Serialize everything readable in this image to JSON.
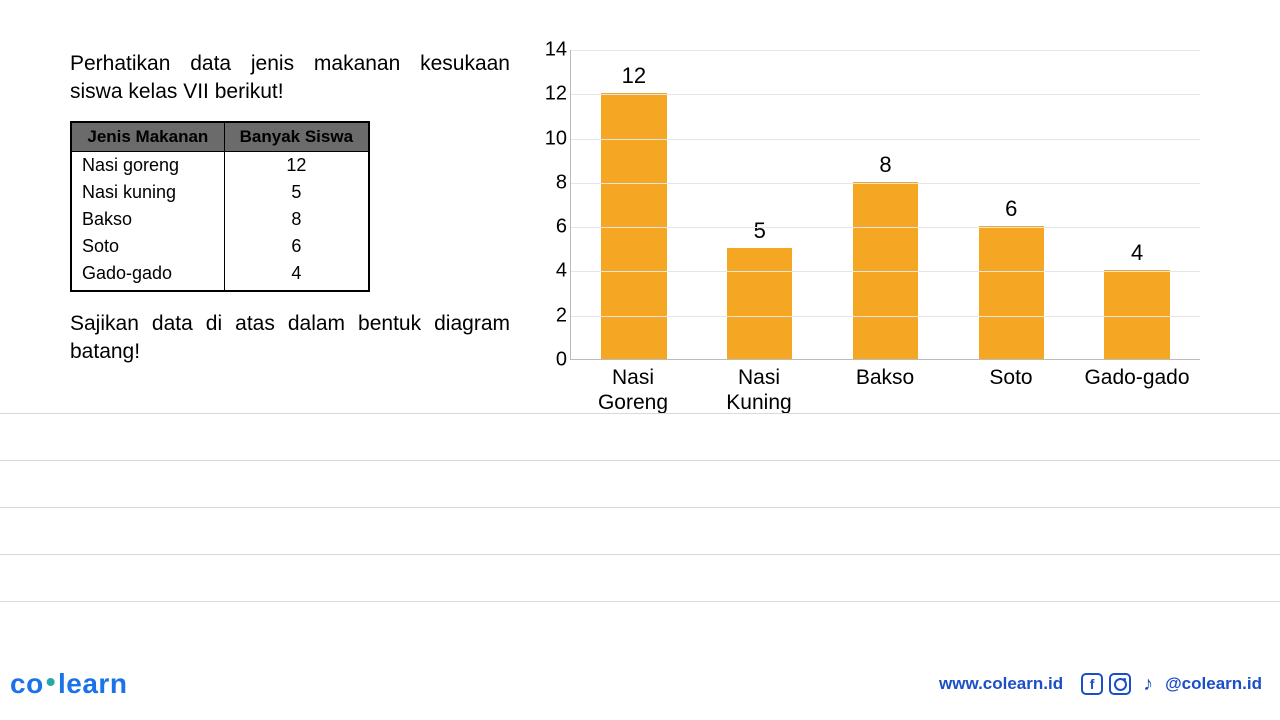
{
  "prompt": {
    "line1": "Perhatikan data jenis makanan kesukaan siswa kelas VII berikut!",
    "instruction": "Sajikan data di atas dalam bentuk diagram batang!"
  },
  "table": {
    "headers": [
      "Jenis Makanan",
      "Banyak Siswa"
    ],
    "rows": [
      [
        "Nasi goreng",
        "12"
      ],
      [
        "Nasi kuning",
        "5"
      ],
      [
        "Bakso",
        "8"
      ],
      [
        "Soto",
        "6"
      ],
      [
        "Gado-gado",
        "4"
      ]
    ],
    "header_bg": "#6b6b6b",
    "border_color": "#000000"
  },
  "chart": {
    "type": "bar",
    "categories": [
      "Nasi Goreng",
      "Nasi Kuning",
      "Bakso",
      "Soto",
      "Gado-gado"
    ],
    "values": [
      12,
      5,
      8,
      6,
      4
    ],
    "bar_color": "#f5a623",
    "ylim": [
      0,
      14
    ],
    "ytick_step": 2,
    "yticks": [
      0,
      2,
      4,
      6,
      8,
      10,
      12,
      14
    ],
    "grid_color": "#e6e6e6",
    "axis_color": "#bbbbbb",
    "background_color": "#ffffff",
    "value_label_fontsize": 22,
    "xlabel_fontsize": 21,
    "ytick_fontsize": 20,
    "bar_width_ratio": 0.52
  },
  "footer": {
    "logo_co": "co",
    "logo_learn": "learn",
    "url": "www.colearn.id",
    "handle": "@colearn.id"
  }
}
